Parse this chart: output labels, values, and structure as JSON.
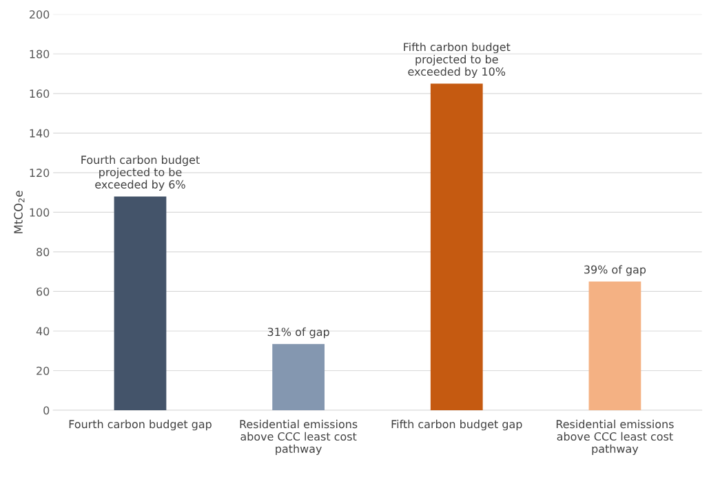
{
  "chart_data": {
    "type": "bar",
    "ylabel": "MtCO$_{2}$e",
    "categories": [
      "Fourth carbon budget gap",
      "Residential emissions\nabove CCC least cost\npathway",
      "Fifth carbon budget gap",
      "Residential emissions\nabove CCC least cost\npathway"
    ],
    "values": [
      108,
      33.5,
      165,
      65
    ],
    "colors": [
      "#44546a",
      "#8497b0",
      "#c55a11",
      "#f4b183"
    ],
    "annotations": [
      "Fourth carbon budget\nprojected to be\nexceeded by 6%",
      "31% of gap",
      "Fifth carbon budget\nprojected to be\nexceeded by 10%",
      "39% of gap"
    ],
    "ylim": [
      0,
      200
    ],
    "yticks": [
      0,
      20,
      40,
      60,
      80,
      100,
      120,
      140,
      160,
      180,
      200
    ],
    "grid": "y"
  }
}
